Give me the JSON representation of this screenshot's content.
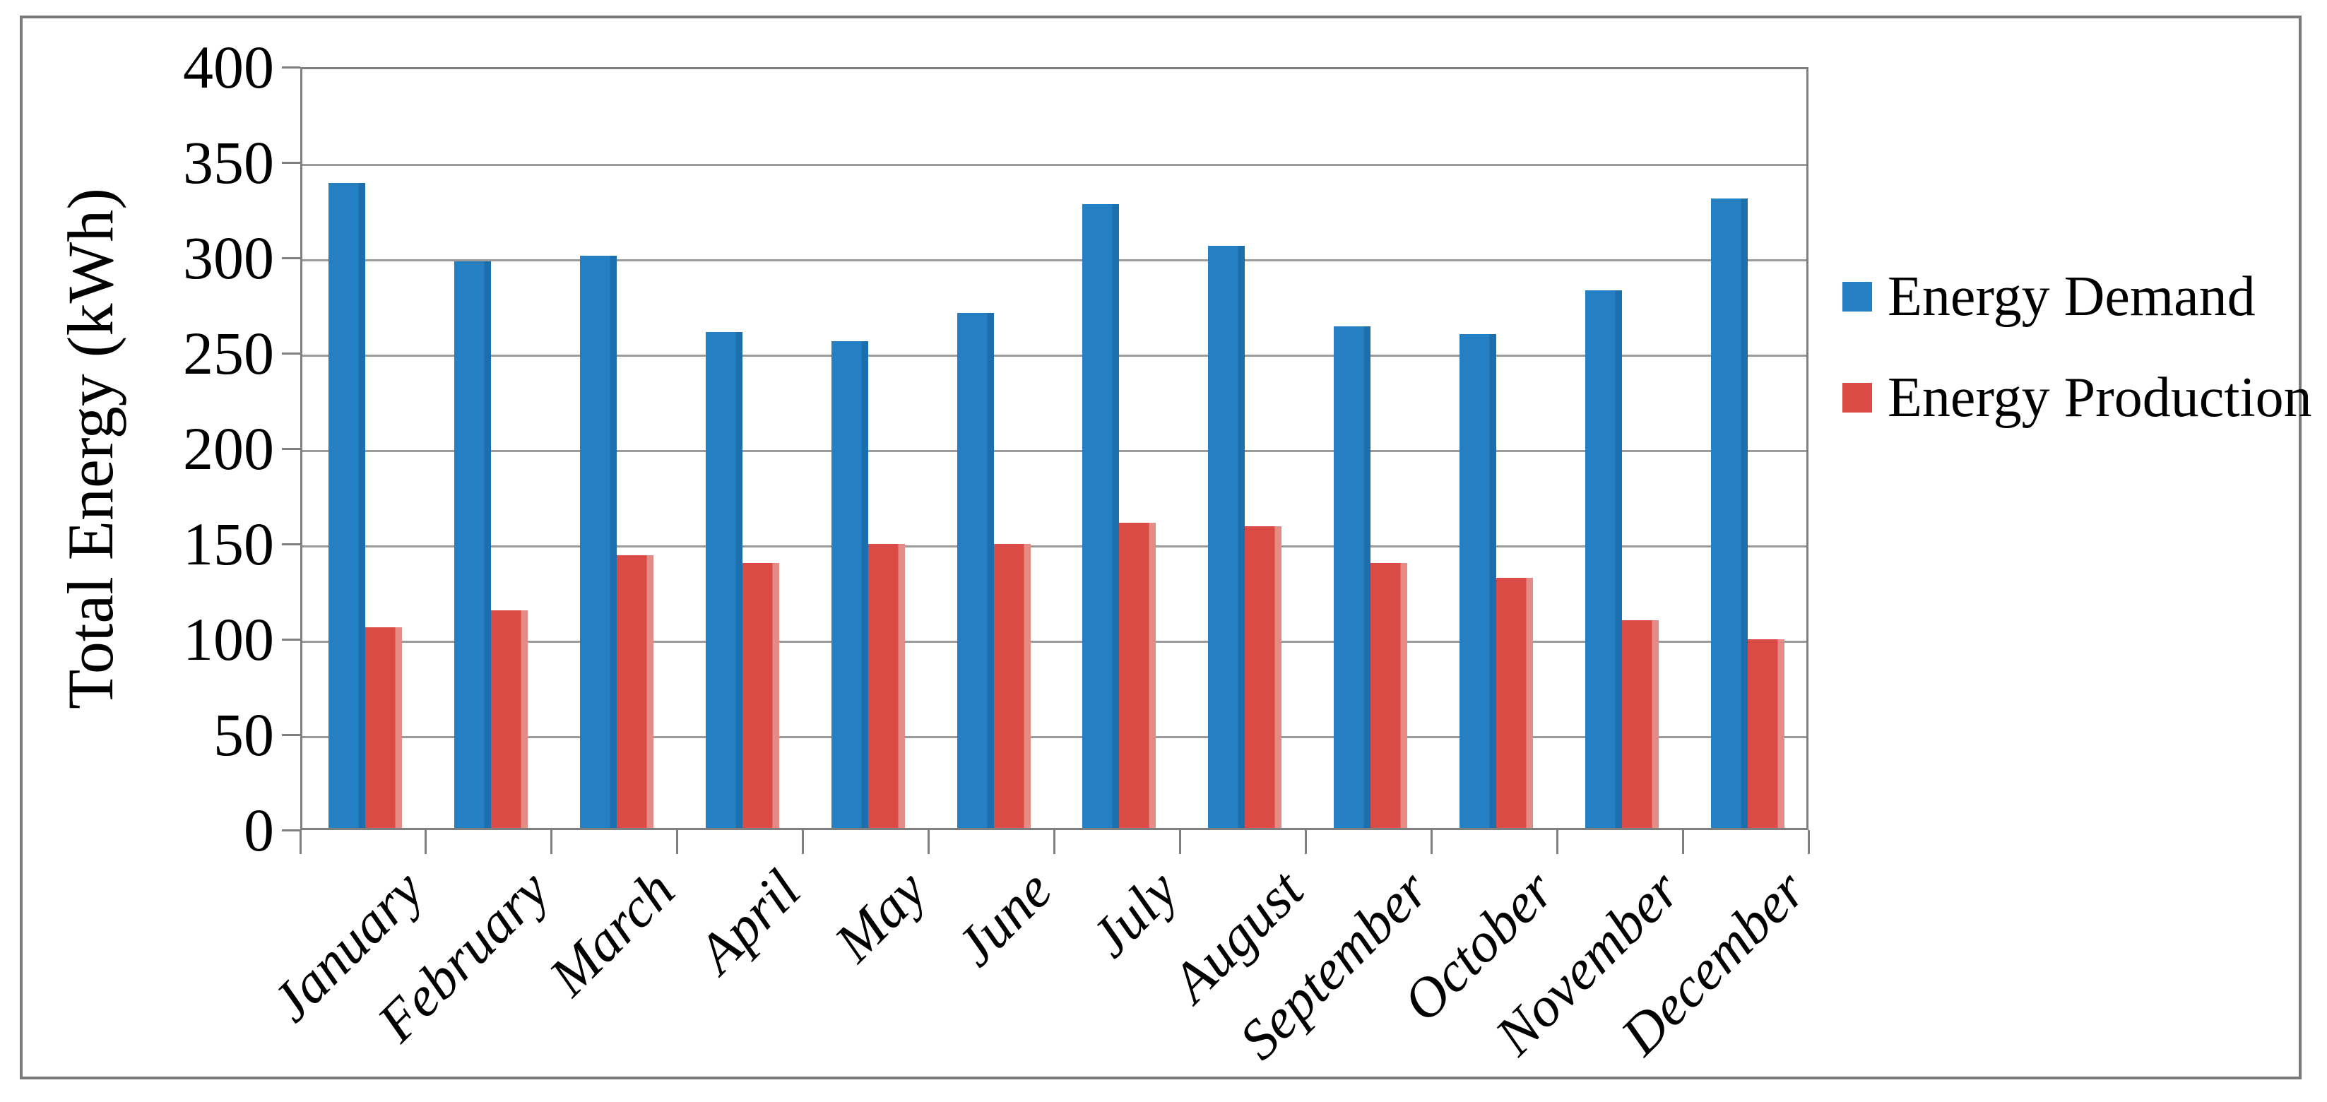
{
  "chart_data": {
    "type": "bar",
    "title": "",
    "categories": [
      "January",
      "February",
      "March",
      "April",
      "May",
      "June",
      "July",
      "August",
      "September",
      "October",
      "November",
      "December"
    ],
    "series": [
      {
        "name": "Energy Demand",
        "color": "#2580C3",
        "edge_color": "#1D6EAC",
        "values": [
          338,
          297,
          300,
          260,
          255,
          270,
          327,
          305,
          263,
          259,
          282,
          330
        ]
      },
      {
        "name": "Energy Production",
        "color": "#DA4B45",
        "edge_color": "#E58B86",
        "values": [
          105,
          114,
          143,
          139,
          149,
          149,
          160,
          158,
          139,
          131,
          109,
          99
        ]
      }
    ],
    "xlabel": "",
    "ylabel": "Total Energy (kWh)",
    "ylim": [
      0,
      400
    ],
    "y_ticks": [
      400,
      350,
      300,
      250,
      200,
      150,
      100,
      50,
      0
    ],
    "grid": "horizontal-gridlines-on",
    "legend_position": "right"
  },
  "styles": {
    "gridline_color": "#9B9B9B",
    "axis_color": "#7F7F7F",
    "frame_border_color": "#7A7A7A",
    "background": "#FFFFFF",
    "text_color": "#000000"
  }
}
